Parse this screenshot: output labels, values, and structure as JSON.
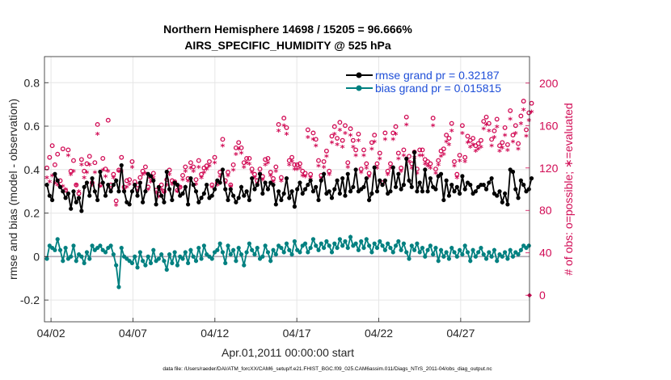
{
  "chart_data": {
    "type": "line",
    "title": "Northern Hemisphere 14698 / 15205 = 96.666%",
    "subtitle": "AIRS_SPECIFIC_HUMIDITY @ 525 hPa",
    "xlabel": "Apr.01,2011 00:00:00 start",
    "ylabel": "rmse and bias (model - observation)",
    "y2label": "# of obs: o=possible; ∗=evaluated",
    "footnote": "data file: /Users/raeder/DAI/ATM_forcXX/CAM6_setup/f.e21.FHIST_BGC.f09_025.CAM6assim.011/Diags_NTrS_2011-04/obs_diag_output.nc",
    "xlim": [
      1.6,
      31.2
    ],
    "ylim": [
      -0.3,
      0.92
    ],
    "y2lim": [
      -25,
      225
    ],
    "xticks": [
      2,
      7,
      12,
      17,
      22,
      27
    ],
    "xtick_labels": [
      "04/02",
      "04/07",
      "04/12",
      "04/17",
      "04/22",
      "04/27"
    ],
    "yticks": [
      -0.2,
      0,
      0.2,
      0.4,
      0.6,
      0.8
    ],
    "ytick_labels": [
      "-0.2",
      "0",
      "0.2",
      "0.4",
      "0.6",
      "0.8"
    ],
    "y2ticks": [
      0,
      40,
      80,
      120,
      160,
      200
    ],
    "y2tick_labels": [
      "0",
      "40",
      "80",
      "120",
      "160",
      "200"
    ],
    "grid": true,
    "legend_position": "top-right",
    "series": [
      {
        "name": "rmse grand pr = 0.32187",
        "color": "#000000",
        "axis": "left",
        "values": [
          0.33,
          0.28,
          0.26,
          0.38,
          0.35,
          0.32,
          0.3,
          0.27,
          0.29,
          0.22,
          0.3,
          0.25,
          0.27,
          0.21,
          0.32,
          0.34,
          0.28,
          0.36,
          0.3,
          0.26,
          0.39,
          0.34,
          0.28,
          0.33,
          0.3,
          0.33,
          0.35,
          0.3,
          0.42,
          0.3,
          0.25,
          0.24,
          0.3,
          0.33,
          0.28,
          0.34,
          0.25,
          0.3,
          0.38,
          0.37,
          0.35,
          0.24,
          0.32,
          0.28,
          0.25,
          0.39,
          0.31,
          0.26,
          0.34,
          0.33,
          0.28,
          0.29,
          0.32,
          0.24,
          0.36,
          0.33,
          0.3,
          0.25,
          0.27,
          0.29,
          0.33,
          0.27,
          0.28,
          0.31,
          0.35,
          0.34,
          0.4,
          0.31,
          0.26,
          0.31,
          0.28,
          0.25,
          0.27,
          0.32,
          0.28,
          0.3,
          0.26,
          0.36,
          0.31,
          0.33,
          0.38,
          0.29,
          0.34,
          0.31,
          0.34,
          0.33,
          0.24,
          0.3,
          0.26,
          0.29,
          0.36,
          0.27,
          0.3,
          0.23,
          0.31,
          0.34,
          0.29,
          0.31,
          0.33,
          0.35,
          0.3,
          0.32,
          0.26,
          0.35,
          0.38,
          0.29,
          0.3,
          0.27,
          0.31,
          0.35,
          0.29,
          0.36,
          0.28,
          0.38,
          0.3,
          0.32,
          0.4,
          0.3,
          0.31,
          0.32,
          0.36,
          0.26,
          0.29,
          0.41,
          0.3,
          0.35,
          0.33,
          0.35,
          0.29,
          0.3,
          0.41,
          0.32,
          0.38,
          0.31,
          0.33,
          0.45,
          0.35,
          0.32,
          0.48,
          0.3,
          0.34,
          0.3,
          0.4,
          0.3,
          0.36,
          0.32,
          0.31,
          0.37,
          0.38,
          0.26,
          0.35,
          0.28,
          0.33,
          0.3,
          0.32,
          0.29,
          0.37,
          0.31,
          0.34,
          0.33,
          0.29,
          0.3,
          0.32,
          0.33,
          0.33,
          0.31,
          0.34,
          0.36,
          0.29,
          0.28,
          0.3,
          0.25,
          0.29,
          0.24,
          0.4,
          0.39,
          0.31,
          0.27,
          0.35,
          0.33,
          0.3,
          0.31,
          0.36
        ]
      },
      {
        "name": "bias grand pr = 0.015815",
        "color": "#008080",
        "axis": "left",
        "values": [
          -0.01,
          0.05,
          0.04,
          0.03,
          0.08,
          0.03,
          -0.02,
          0.04,
          -0.01,
          0.0,
          0.05,
          -0.02,
          0.01,
          0.0,
          -0.03,
          0.02,
          -0.01,
          0.05,
          0.03,
          0.04,
          0.05,
          0.03,
          0.02,
          0.04,
          0.05,
          0.01,
          -0.04,
          -0.14,
          0.04,
          0.0,
          -0.01,
          -0.02,
          -0.03,
          0.0,
          -0.05,
          0.02,
          -0.02,
          -0.04,
          0.0,
          -0.03,
          0.03,
          -0.02,
          -0.01,
          0.01,
          -0.02,
          -0.06,
          0.01,
          -0.03,
          0.02,
          -0.04,
          0.0,
          -0.01,
          0.02,
          -0.03,
          0.03,
          0.0,
          -0.02,
          0.04,
          -0.01,
          0.05,
          0.01,
          0.0,
          -0.01,
          0.02,
          0.03,
          0.06,
          0.02,
          -0.03,
          0.05,
          0.01,
          0.03,
          -0.02,
          0.04,
          0.01,
          -0.04,
          0.02,
          0.06,
          0.03,
          0.01,
          0.04,
          -0.01,
          0.0,
          0.05,
          0.02,
          -0.02,
          0.03,
          0.01,
          0.05,
          0.04,
          0.02,
          0.06,
          0.03,
          0.01,
          0.07,
          0.03,
          0.02,
          0.05,
          0.06,
          0.02,
          0.04,
          0.08,
          0.05,
          0.03,
          0.06,
          0.04,
          0.07,
          0.05,
          0.02,
          0.06,
          0.04,
          0.08,
          0.05,
          0.07,
          0.04,
          0.09,
          0.05,
          0.06,
          0.03,
          0.07,
          0.04,
          0.08,
          0.05,
          0.02,
          0.06,
          0.04,
          0.07,
          0.05,
          0.03,
          0.06,
          0.04,
          0.02,
          0.05,
          0.07,
          0.03,
          0.06,
          0.02,
          -0.01,
          0.05,
          0.03,
          0.06,
          0.02,
          0.04,
          0.0,
          0.03,
          0.05,
          0.01,
          0.04,
          -0.02,
          0.03,
          0.0,
          0.02,
          -0.01,
          0.04,
          0.02,
          0.0,
          0.03,
          0.01,
          0.05,
          0.02,
          -0.02,
          0.03,
          0.0,
          0.02,
          0.04,
          0.01,
          -0.01,
          0.02,
          0.0,
          0.03,
          -0.02,
          0.01,
          0.0,
          0.02,
          -0.01,
          0.03,
          0.0,
          0.02,
          0.01,
          0.03,
          0.05,
          0.04,
          0.05
        ]
      },
      {
        "name": "possible obs",
        "marker": "circle",
        "color": "#d10a54",
        "axis": "right",
        "values": [
          120,
          130,
          141,
          123,
          133,
          108,
          138,
          99,
          137,
          117,
          127,
          104,
          96,
          128,
          117,
          124,
          131,
          106,
          125,
          161,
          104,
          129,
          119,
          165,
          104,
          114,
          89,
          118,
          130,
          102,
          108,
          109,
          126,
          107,
          104,
          111,
          117,
          121,
          102,
          111,
          115,
          99,
          95,
          104,
          98,
          109,
          118,
          108,
          107,
          99,
          102,
          113,
          121,
          110,
          125,
          121,
          109,
          127,
          114,
          120,
          122,
          126,
          104,
          130,
          106,
          116,
          147,
          108,
          116,
          104,
          123,
          139,
          144,
          139,
          125,
          129,
          129,
          119,
          114,
          108,
          119,
          112,
          128,
          129,
          116,
          110,
          121,
          161,
          111,
          167,
          158,
          127,
          130,
          123,
          123,
          124,
          117,
          115,
          156,
          114,
          153,
          147,
          127,
          113,
          126,
          136,
          117,
          150,
          159,
          148,
          163,
          146,
          160,
          125,
          157,
          146,
          137,
          152,
          119,
          137,
          124,
          115,
          144,
          151,
          124,
          134,
          106,
          153,
          117,
          124,
          153,
          159,
          134,
          120,
          137,
          168,
          131,
          124,
          135,
          119,
          137,
          137,
          128,
          126,
          124,
          167,
          119,
          127,
          136,
          138,
          151,
          148,
          162,
          126,
          114,
          132,
          160,
          130,
          150,
          146,
          148,
          141,
          143,
          146,
          164,
          168,
          162,
          147,
          155,
          166,
          141,
          144,
          158,
          142,
          174,
          151,
          160,
          143,
          169,
          183,
          156,
          172,
          181
        ]
      },
      {
        "name": "evaluated obs",
        "marker": "star",
        "color": "#d10a54",
        "axis": "right",
        "values": [
          110,
          106,
          112,
          105,
          103,
          101,
          102,
          99,
          131,
          113,
          116,
          103,
          97,
          122,
          110,
          115,
          122,
          103,
          115,
          151,
          102,
          117,
          111,
          116,
          98,
          110,
          84,
          116,
          116,
          99,
          101,
          104,
          120,
          103,
          98,
          105,
          113,
          114,
          99,
          106,
          110,
          96,
          92,
          99,
          96,
          103,
          113,
          104,
          105,
          97,
          101,
          108,
          116,
          107,
          119,
          116,
          104,
          120,
          110,
          115,
          118,
          121,
          101,
          124,
          103,
          111,
          140,
          105,
          112,
          102,
          117,
          132,
          137,
          133,
          120,
          124,
          123,
          115,
          110,
          104,
          114,
          108,
          122,
          124,
          112,
          106,
          116,
          154,
          107,
          159,
          151,
          122,
          125,
          118,
          118,
          119,
          112,
          111,
          148,
          110,
          146,
          140,
          121,
          109,
          120,
          130,
          113,
          143,
          151,
          141,
          155,
          139,
          152,
          120,
          150,
          139,
          131,
          145,
          115,
          131,
          119,
          111,
          137,
          144,
          119,
          128,
          103,
          146,
          113,
          119,
          146,
          151,
          128,
          116,
          131,
          160,
          125,
          119,
          129,
          114,
          131,
          131,
          123,
          121,
          119,
          159,
          114,
          122,
          130,
          132,
          144,
          141,
          154,
          121,
          110,
          126,
          152,
          125,
          143,
          139,
          141,
          135,
          137,
          139,
          156,
          160,
          154,
          140,
          148,
          158,
          135,
          138,
          150,
          136,
          165,
          144,
          152,
          137,
          161,
          174,
          149,
          164,
          172
        ]
      }
    ]
  }
}
